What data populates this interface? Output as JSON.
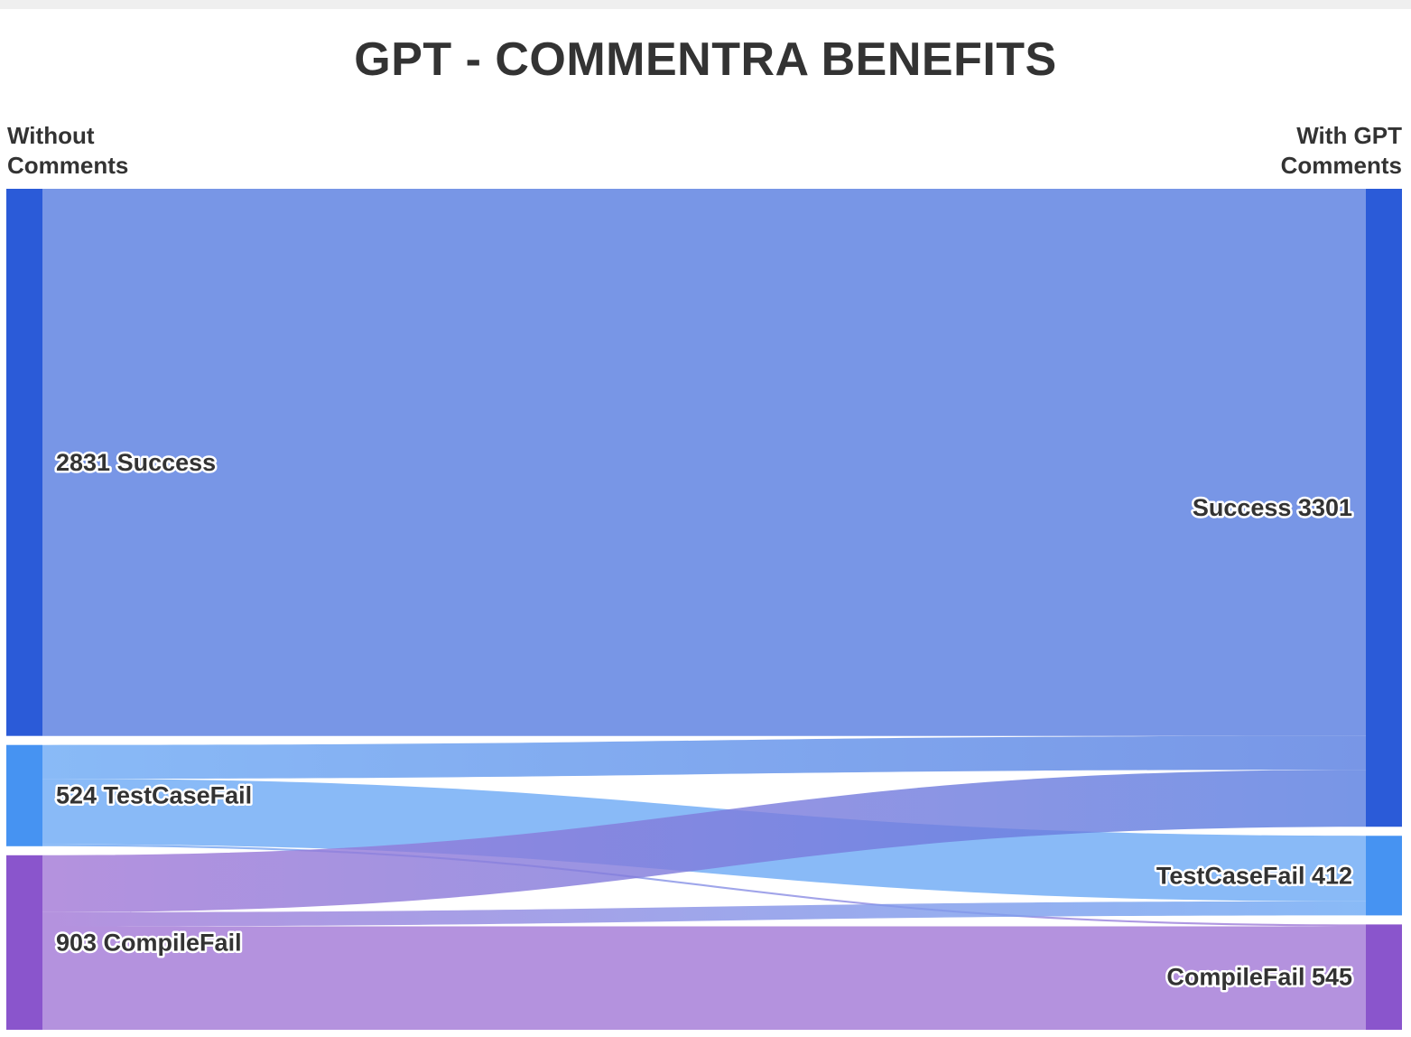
{
  "chart_data": {
    "type": "sankey",
    "title": "GPT - COMMENTRA BENEFITS",
    "left_column": {
      "line1": "Without",
      "line2": "Comments"
    },
    "right_column": {
      "line1": "With GPT",
      "line2": "Comments"
    },
    "source_nodes": [
      {
        "id": "src_success",
        "name": "Success",
        "value": 2831,
        "label": "2831 Success",
        "color": "#2b5bd8"
      },
      {
        "id": "src_testcasefail",
        "name": "TestCaseFail",
        "value": 524,
        "label": "524 TestCaseFail",
        "color": "#4693f2"
      },
      {
        "id": "src_compilefail",
        "name": "CompileFail",
        "value": 903,
        "label": "903 CompileFail",
        "color": "#8a55cc"
      }
    ],
    "target_nodes": [
      {
        "id": "tgt_success",
        "name": "Success",
        "value": 3301,
        "label": "Success 3301",
        "color": "#2b5bd8"
      },
      {
        "id": "tgt_testcasefail",
        "name": "TestCaseFail",
        "value": 412,
        "label": "TestCaseFail 412",
        "color": "#4693f2"
      },
      {
        "id": "tgt_compilefail",
        "name": "CompileFail",
        "value": 545,
        "label": "CompileFail 545",
        "color": "#8a55cc"
      }
    ],
    "links": [
      {
        "source": "src_success",
        "target": "tgt_success",
        "value": 2831
      },
      {
        "source": "src_testcasefail",
        "target": "tgt_success",
        "value": 175
      },
      {
        "source": "src_testcasefail",
        "target": "tgt_testcasefail",
        "value": 339
      },
      {
        "source": "src_testcasefail",
        "target": "tgt_compilefail",
        "value": 10
      },
      {
        "source": "src_compilefail",
        "target": "tgt_success",
        "value": 295
      },
      {
        "source": "src_compilefail",
        "target": "tgt_testcasefail",
        "value": 73
      },
      {
        "source": "src_compilefail",
        "target": "tgt_compilefail",
        "value": 535
      }
    ]
  }
}
